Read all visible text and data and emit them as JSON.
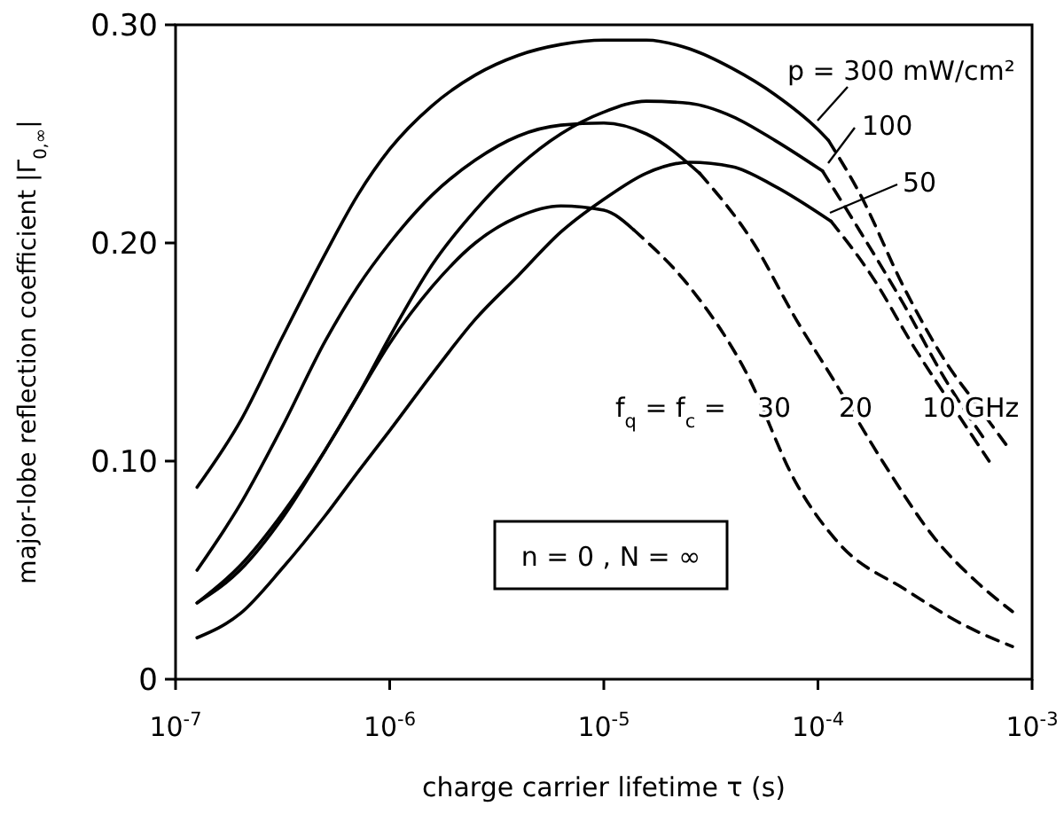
{
  "chart_data": {
    "type": "line",
    "xlabel": "charge carrier lifetime  τ  (s)",
    "ylabel": "major-lobe  reflection  coefficient  |Γ$_{0,∞}$|",
    "log": "x",
    "xlim": [
      1e-07,
      0.001
    ],
    "ylim": [
      0,
      0.3
    ],
    "xticks": [
      {
        "value": 1e-07,
        "label": "10$^{-7}$"
      },
      {
        "value": 1e-06,
        "label": "10$^{-6}$"
      },
      {
        "value": 1e-05,
        "label": "10$^{-5}$"
      },
      {
        "value": 0.0001,
        "label": "10$^{-4}$"
      },
      {
        "value": 0.001,
        "label": "10$^{-3}$"
      }
    ],
    "yticks": [
      {
        "value": 0,
        "label": "0"
      },
      {
        "value": 0.1,
        "label": "0.10"
      },
      {
        "value": 0.2,
        "label": "0.20"
      },
      {
        "value": 0.3,
        "label": "0.30"
      }
    ],
    "grid": false,
    "marker": "none",
    "series": [
      {
        "color": "#000000",
        "line_style": "solid",
        "x": [
          1.26e-07,
          2e-07,
          3.16e-07,
          5e-07,
          7.1e-07,
          1e-06,
          1.58e-06,
          2.51e-06,
          3.98e-06,
          6.3e-06,
          1e-05,
          1.58e-05,
          2.51e-05,
          3.98e-05,
          6.3e-05,
          0.0001,
          0.000112
        ],
        "values": [
          0.088,
          0.118,
          0.157,
          0.195,
          0.222,
          0.243,
          0.263,
          0.277,
          0.286,
          0.291,
          0.293,
          0.293,
          0.289,
          0.28,
          0.268,
          0.252,
          0.247
        ]
      },
      {
        "color": "#000000",
        "line_style": "dashed",
        "x": [
          0.000112,
          0.000158,
          0.000251,
          0.000398,
          0.00056,
          0.00079
        ],
        "values": [
          0.247,
          0.222,
          0.18,
          0.145,
          0.125,
          0.105
        ]
      },
      {
        "color": "#000000",
        "line_style": "solid",
        "x": [
          1.26e-07,
          2e-07,
          3.16e-07,
          5e-07,
          7.1e-07,
          1e-06,
          1.58e-06,
          2.51e-06,
          3.98e-06,
          6.3e-06,
          1e-05,
          1.58e-05,
          2.8e-05
        ],
        "values": [
          0.05,
          0.08,
          0.116,
          0.155,
          0.18,
          0.2,
          0.222,
          0.238,
          0.249,
          0.254,
          0.255,
          0.25,
          0.232
        ]
      },
      {
        "color": "#000000",
        "line_style": "dashed",
        "x": [
          2.8e-05,
          5e-05,
          7.9e-05,
          0.000117,
          0.0002,
          0.000355,
          0.00056,
          0.00081
        ],
        "values": [
          0.232,
          0.2,
          0.165,
          0.138,
          0.1,
          0.064,
          0.044,
          0.031
        ]
      },
      {
        "color": "#000000",
        "line_style": "solid",
        "x": [
          1.26e-07,
          2e-07,
          3.16e-07,
          5e-07,
          7.1e-07,
          1e-06,
          1.58e-06,
          2.51e-06,
          3.98e-06,
          6.3e-06,
          1e-05,
          1.38e-05
        ],
        "values": [
          0.035,
          0.052,
          0.076,
          0.105,
          0.13,
          0.154,
          0.18,
          0.2,
          0.212,
          0.217,
          0.215,
          0.206
        ]
      },
      {
        "color": "#000000",
        "line_style": "dashed",
        "x": [
          1.38e-05,
          2.51e-05,
          4.6e-05,
          7.9e-05,
          0.000126,
          0.000257,
          0.0005,
          0.00081
        ],
        "values": [
          0.206,
          0.18,
          0.141,
          0.09,
          0.062,
          0.041,
          0.024,
          0.015
        ]
      },
      {
        "color": "#000000",
        "line_style": "solid",
        "x": [
          1.26e-07,
          2e-07,
          3.16e-07,
          5e-07,
          7.1e-07,
          1e-06,
          1.58e-06,
          2.51e-06,
          3.98e-06,
          6.3e-06,
          1e-05,
          1.58e-05,
          2.51e-05,
          3.98e-05,
          6.3e-05,
          0.000105
        ],
        "values": [
          0.035,
          0.05,
          0.074,
          0.105,
          0.13,
          0.157,
          0.19,
          0.215,
          0.235,
          0.25,
          0.26,
          0.265,
          0.264,
          0.258,
          0.247,
          0.233
        ]
      },
      {
        "color": "#000000",
        "line_style": "dashed",
        "x": [
          0.000105,
          0.000158,
          0.000251,
          0.00039,
          0.0006
        ],
        "values": [
          0.233,
          0.205,
          0.172,
          0.138,
          0.11
        ]
      },
      {
        "color": "#000000",
        "line_style": "solid",
        "x": [
          1.26e-07,
          2e-07,
          3.16e-07,
          5e-07,
          7.1e-07,
          1e-06,
          1.58e-06,
          2.51e-06,
          3.98e-06,
          6.3e-06,
          1e-05,
          1.58e-05,
          2.51e-05,
          3.98e-05,
          6.3e-05,
          0.000115
        ],
        "values": [
          0.019,
          0.03,
          0.051,
          0.075,
          0.095,
          0.114,
          0.14,
          0.165,
          0.185,
          0.205,
          0.22,
          0.232,
          0.237,
          0.235,
          0.226,
          0.21
        ]
      },
      {
        "color": "#000000",
        "line_style": "dashed",
        "x": [
          0.000115,
          0.000178,
          0.000282,
          0.000447,
          0.00063
        ],
        "values": [
          0.21,
          0.185,
          0.152,
          0.122,
          0.1
        ]
      }
    ],
    "annotations": [
      "p = 300 mW/cm²",
      "100",
      "50",
      "f$_{q}$ = f$_{c}$ =",
      "30",
      "20",
      "10 GHz",
      "n = 0 ,  N = ∞"
    ]
  }
}
